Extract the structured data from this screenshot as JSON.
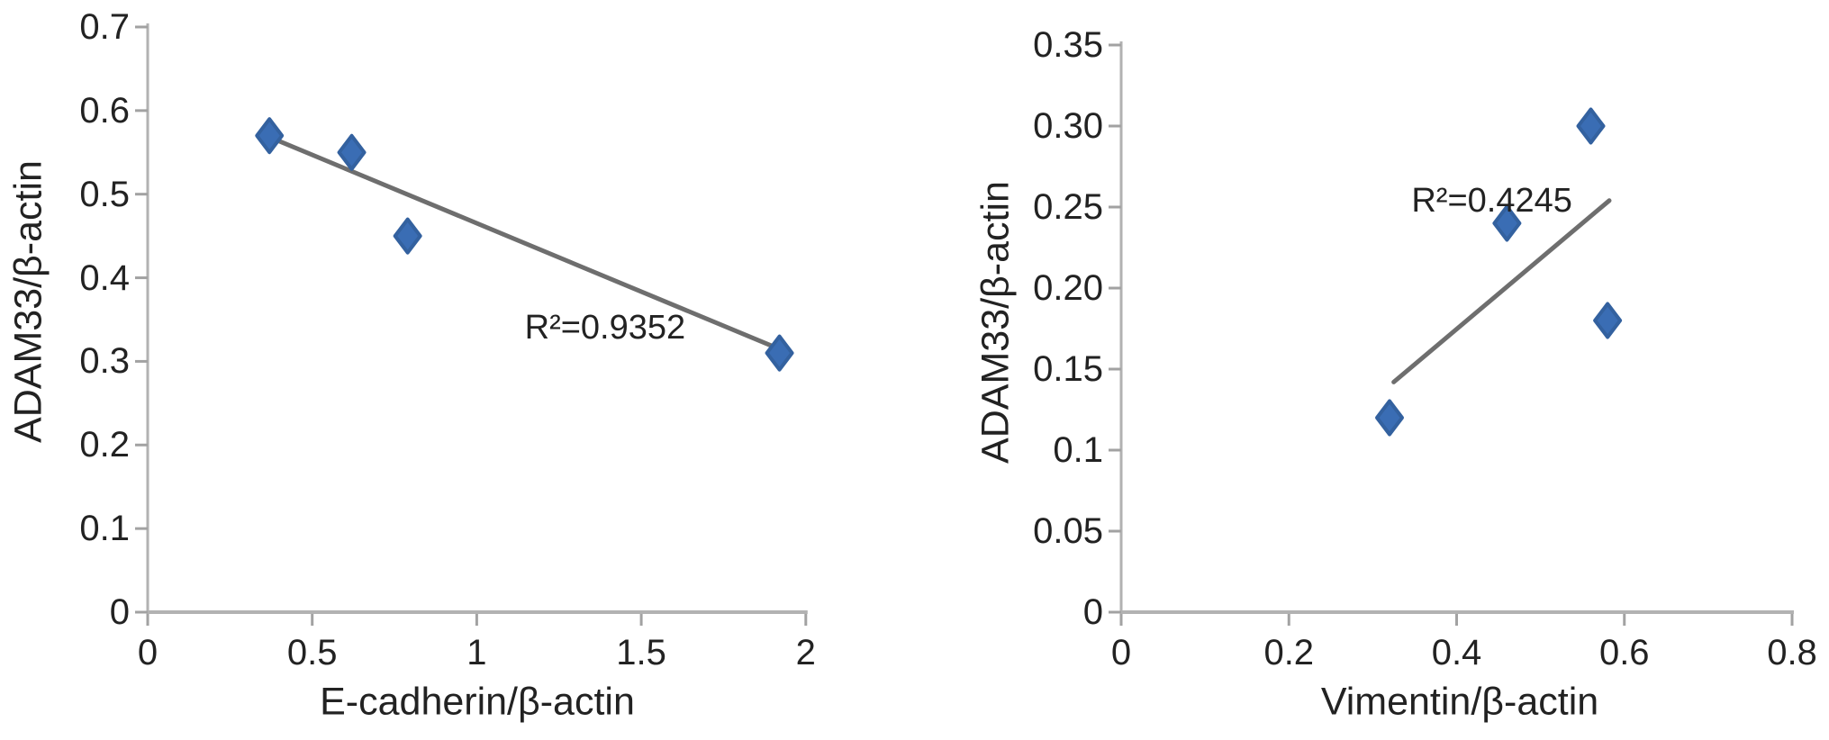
{
  "figure": {
    "background": "#ffffff",
    "point_color": "#3a6db4",
    "point_edge_color": "#33619f",
    "trend_color": "#6e6e6e",
    "axis_color": "#b2b2b2",
    "tick_color": "#a2a2a2",
    "text_color": "#222222"
  },
  "chart_data": [
    {
      "type": "scatter",
      "title": "",
      "xlabel": "E-cadherin/β-actin",
      "ylabel": "ADAM33/β-actin",
      "xlim": [
        0,
        2
      ],
      "ylim": [
        0,
        0.7
      ],
      "grid": false,
      "legend": null,
      "xticks": [
        {
          "v": 0,
          "label": "0"
        },
        {
          "v": 0.5,
          "label": "0.5"
        },
        {
          "v": 1,
          "label": "1"
        },
        {
          "v": 1.5,
          "label": "1.5"
        },
        {
          "v": 2,
          "label": "2"
        }
      ],
      "yticks": [
        {
          "v": 0,
          "label": "0"
        },
        {
          "v": 0.1,
          "label": "0.1"
        },
        {
          "v": 0.2,
          "label": "0.2"
        },
        {
          "v": 0.3,
          "label": "0.3"
        },
        {
          "v": 0.4,
          "label": "0.4"
        },
        {
          "v": 0.5,
          "label": "0.5"
        },
        {
          "v": 0.6,
          "label": "0.6"
        },
        {
          "v": 0.7,
          "label": "0.7"
        }
      ],
      "points": [
        {
          "x": 0.37,
          "y": 0.57
        },
        {
          "x": 0.62,
          "y": 0.55
        },
        {
          "x": 0.79,
          "y": 0.45
        },
        {
          "x": 1.92,
          "y": 0.31
        }
      ],
      "trendline": {
        "x1": 0.39,
        "y1": 0.565,
        "x2": 1.9,
        "y2": 0.318
      },
      "annotation": {
        "label": "R²=0.9352",
        "x": 1.39,
        "y": 0.34
      }
    },
    {
      "type": "scatter",
      "title": "",
      "xlabel": "Vimentin/β-actin",
      "ylabel": "ADAM33/β-actin",
      "xlim": [
        0,
        0.8
      ],
      "ylim": [
        0,
        0.35
      ],
      "grid": false,
      "legend": null,
      "xticks": [
        {
          "v": 0,
          "label": "0"
        },
        {
          "v": 0.2,
          "label": "0.2"
        },
        {
          "v": 0.4,
          "label": "0.4"
        },
        {
          "v": 0.6,
          "label": "0.6"
        },
        {
          "v": 0.8,
          "label": "0.8"
        }
      ],
      "yticks": [
        {
          "v": 0,
          "label": "0"
        },
        {
          "v": 0.05,
          "label": "0.05"
        },
        {
          "v": 0.1,
          "label": "0.1"
        },
        {
          "v": 0.15,
          "label": "0.15"
        },
        {
          "v": 0.2,
          "label": "0.20"
        },
        {
          "v": 0.25,
          "label": "0.25"
        },
        {
          "v": 0.3,
          "label": "0.30"
        },
        {
          "v": 0.35,
          "label": "0.35"
        }
      ],
      "points": [
        {
          "x": 0.32,
          "y": 0.12
        },
        {
          "x": 0.46,
          "y": 0.24
        },
        {
          "x": 0.56,
          "y": 0.3
        },
        {
          "x": 0.58,
          "y": 0.18
        }
      ],
      "trendline": {
        "x1": 0.325,
        "y1": 0.142,
        "x2": 0.582,
        "y2": 0.254
      },
      "annotation": {
        "label": "R²=0.4245",
        "x": 0.442,
        "y": 0.254
      }
    }
  ]
}
